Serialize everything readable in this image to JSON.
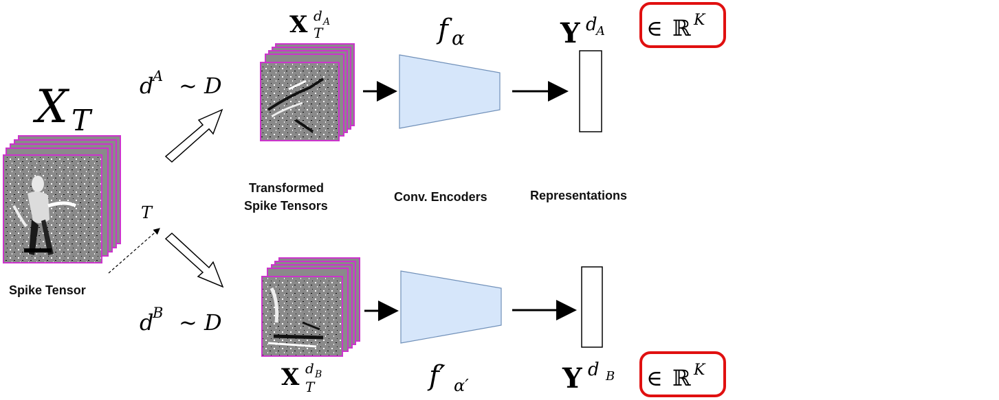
{
  "labels": {
    "spike_tensor": "Spike Tensor",
    "transformed_line1": "Transformed",
    "transformed_line2": "Spike Tensors",
    "encoders": "Conv. Encoders",
    "representations": "Representations"
  },
  "math": {
    "x_t_base": "X",
    "x_t_sub": "T",
    "sample_a_base": "d",
    "sample_a_sup": "A",
    "sample_a_dist": "~ D",
    "sample_b_base": "d",
    "sample_b_sup": "B",
    "sample_b_dist": "~ D",
    "t_label": "T",
    "xa_base": "X",
    "xa_sup_d": "d",
    "xa_sup_sub": "A",
    "xa_sub": "T",
    "xb_base": "X",
    "xb_sup_d": "d",
    "xb_sup_sub": "B",
    "xb_sub": "T",
    "f_alpha_base": "f",
    "f_alpha_sub": "α",
    "f_alpha_prime_base": "f′",
    "f_alpha_prime_sub": "α′",
    "ya_base": "Y",
    "ya_sup_d": "d",
    "ya_sup_sub": "A",
    "yb_base": "Y",
    "yb_sup_d": "d",
    "yb_sup_sub": "B",
    "in_rk_top_in": "∈",
    "in_rk_top_r": "ℝ",
    "in_rk_top_k": "K",
    "in_rk_bottom_in": "∈",
    "in_rk_bottom_r": "ℝ",
    "in_rk_bottom_k": "K"
  },
  "colors": {
    "frame_border": "#cc33cc",
    "frame_fill": "#8a8a8a",
    "encoder_fill": "#d6e6fa",
    "encoder_stroke": "#6f8fb8",
    "highlight_box": "#e01010"
  }
}
